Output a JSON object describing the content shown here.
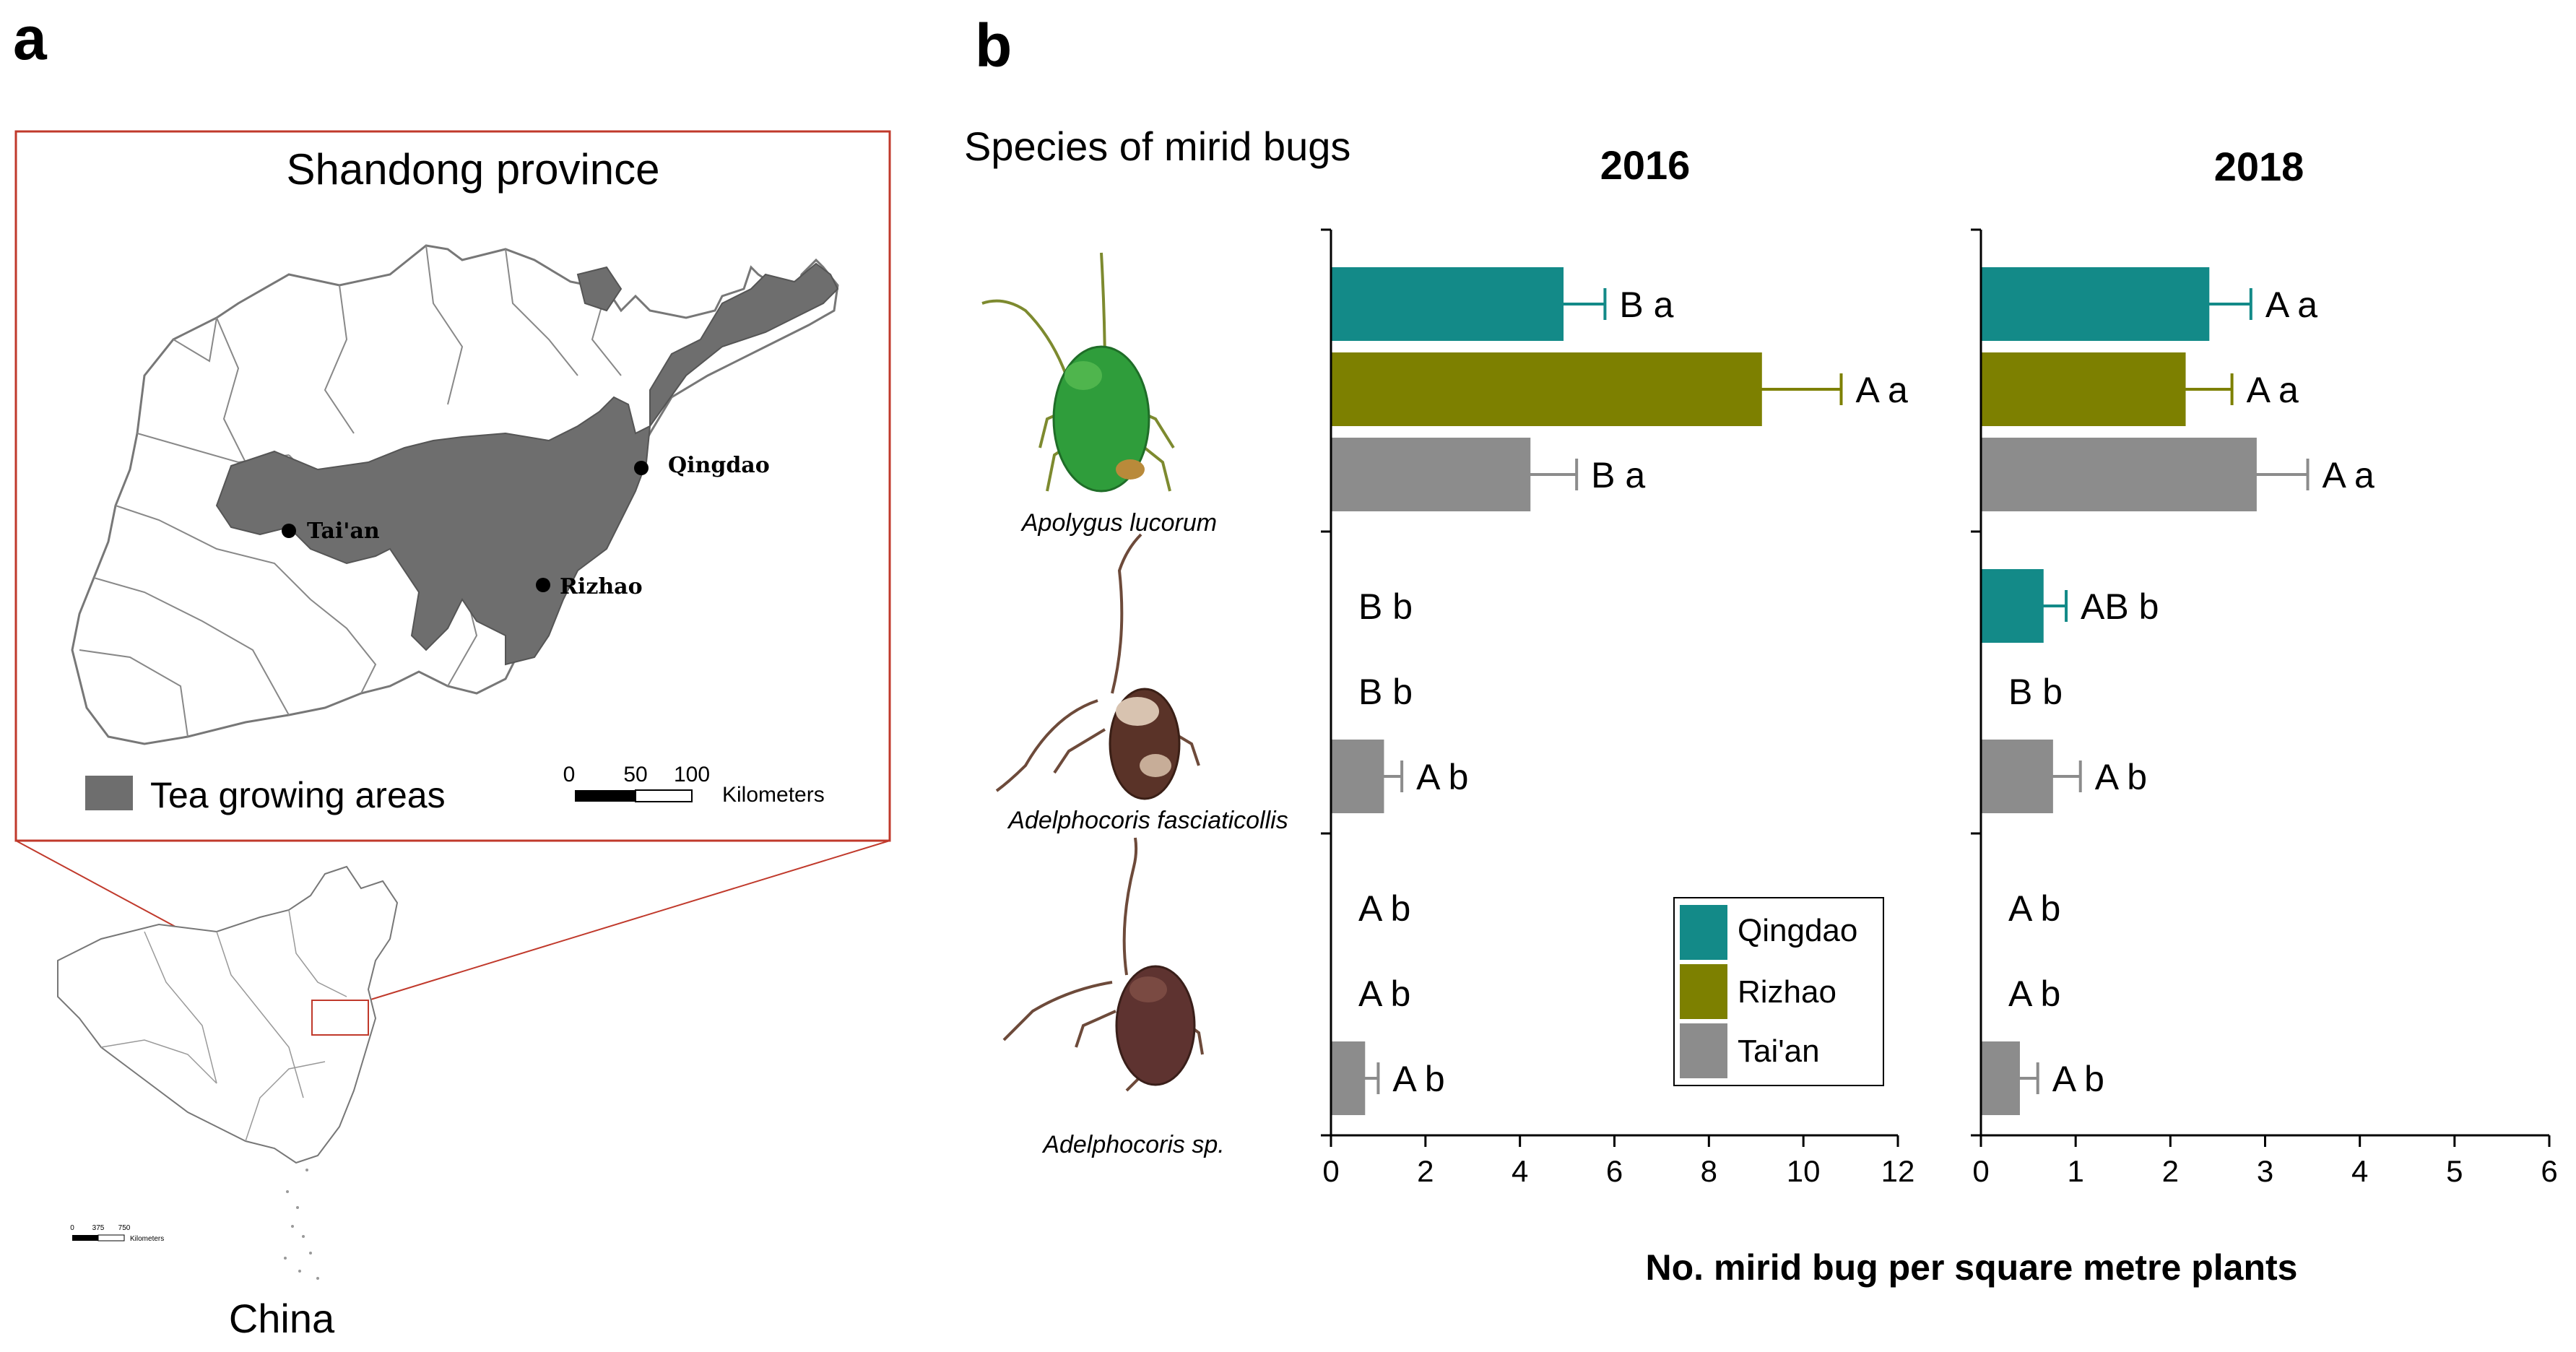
{
  "panel_labels": {
    "a": "a",
    "b": "b"
  },
  "map": {
    "title": "Shandong province",
    "cities": [
      {
        "name": "Qingdao"
      },
      {
        "name": "Tai'an"
      },
      {
        "name": "Rizhao"
      }
    ],
    "legend_label": "Tea growing areas",
    "scale_ticks": [
      "0",
      "50",
      "100"
    ],
    "scale_unit": "Kilometers",
    "country_label": "China",
    "inset_scale_ticks": [
      "0",
      "375",
      "750"
    ],
    "inset_scale_unit": "Kilometers",
    "colors": {
      "tea_area": "#6e6e6e",
      "frame": "#c0392b",
      "border": "#888888"
    }
  },
  "chart_data": {
    "type": "bar",
    "orientation": "horizontal",
    "header": "Species of mirid bugs",
    "xlabel": "No. mirid bug per square metre plants",
    "species": [
      "Apolygus lucorum",
      "Adelphocoris fasciaticollis",
      "Adelphocoris sp."
    ],
    "series_names": [
      "Qingdao",
      "Rizhao",
      "Tai'an"
    ],
    "series_colors": [
      "#138a88",
      "#7d8000",
      "#8c8c8c"
    ],
    "panels": [
      {
        "year": "2016",
        "xlim": [
          0,
          12
        ],
        "ticks": [
          "0",
          "2",
          "4",
          "6",
          "8",
          "10",
          "12"
        ],
        "values": [
          [
            4.9,
            9.1,
            4.2
          ],
          [
            0,
            0,
            1.1
          ],
          [
            0,
            0,
            0.7
          ]
        ],
        "errors": [
          [
            0.9,
            1.7,
            1.0
          ],
          [
            0,
            0,
            0.4
          ],
          [
            0,
            0,
            0.3
          ]
        ],
        "labels": [
          [
            "B a",
            "A a",
            "B a"
          ],
          [
            "B b",
            "B b",
            "A b"
          ],
          [
            "A b",
            "A b",
            "A b"
          ]
        ]
      },
      {
        "year": "2018",
        "xlim": [
          0,
          6
        ],
        "ticks": [
          "0",
          "1",
          "2",
          "3",
          "4",
          "5",
          "6"
        ],
        "values": [
          [
            2.4,
            2.15,
            2.9
          ],
          [
            0.65,
            0,
            0.75
          ],
          [
            0,
            0,
            0.4
          ]
        ],
        "errors": [
          [
            0.45,
            0.5,
            0.55
          ],
          [
            0.25,
            0,
            0.3
          ],
          [
            0,
            0,
            0.2
          ]
        ],
        "labels": [
          [
            "A a",
            "A a",
            "A a"
          ],
          [
            "AB b",
            "B b",
            "A b"
          ],
          [
            "A b",
            "A b",
            "A b"
          ]
        ]
      }
    ]
  }
}
